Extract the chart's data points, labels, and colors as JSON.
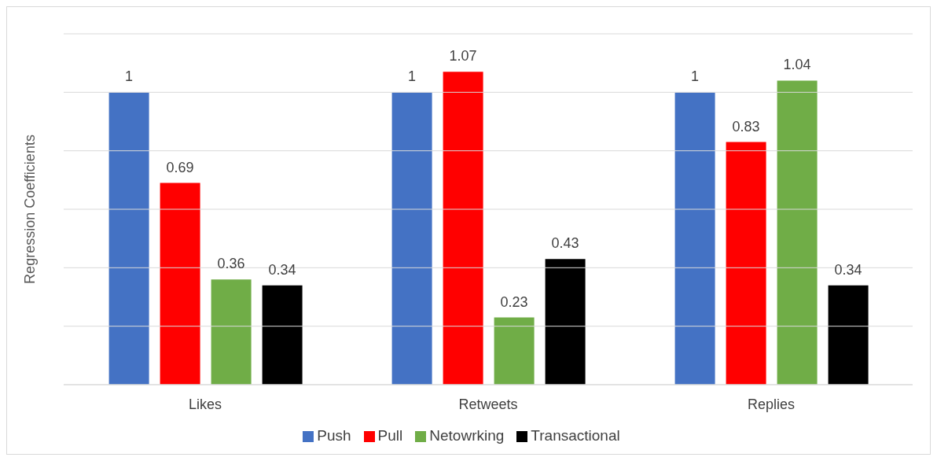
{
  "chart_data": {
    "type": "bar",
    "ylabel": "Regression Coefficients",
    "categories": [
      "Likes",
      "Retweets",
      "Replies"
    ],
    "series": [
      {
        "name": "Push",
        "color": "#4472c4",
        "values": [
          1,
          1,
          1
        ]
      },
      {
        "name": "Pull",
        "color": "#ff0000",
        "values": [
          0.69,
          1.07,
          0.83
        ]
      },
      {
        "name": "Netowrking",
        "color": "#70ad47",
        "values": [
          0.36,
          0.23,
          1.04
        ]
      },
      {
        "name": "Transactional",
        "color": "#000000",
        "values": [
          0.34,
          0.43,
          0.34
        ]
      }
    ],
    "ylim": [
      0,
      1.2
    ],
    "yticks": [
      {
        "value": 0,
        "label": null
      },
      {
        "value": 0.2,
        "label": null
      },
      {
        "value": 0.4,
        "label": null
      },
      {
        "value": 0.6,
        "label": null
      },
      {
        "value": 0.8,
        "label": null
      },
      {
        "value": 1,
        "label": null
      },
      {
        "value": 1.2,
        "label": null
      }
    ],
    "tick_labels": "x",
    "grid": "y",
    "legend": "bottom",
    "data_labels": true
  }
}
